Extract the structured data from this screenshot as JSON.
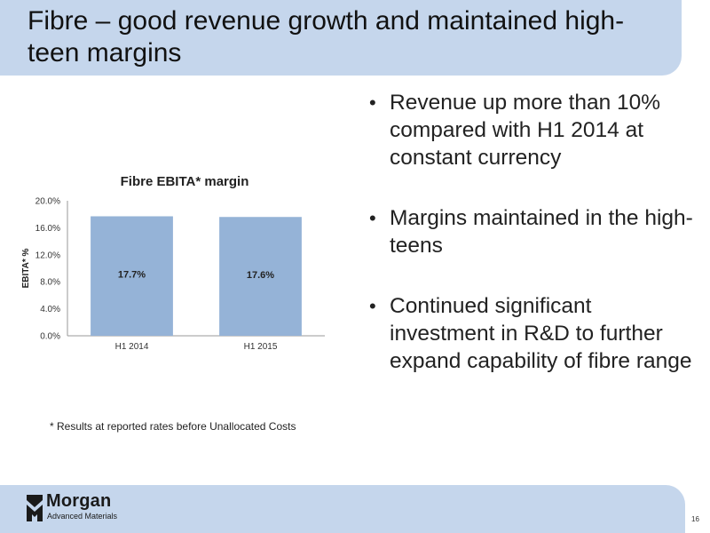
{
  "slide": {
    "title": "Fibre – good revenue growth and maintained high-teen margins",
    "bullets": [
      "Revenue up more than 10% compared with H1 2014 at constant currency",
      "Margins maintained in the high-teens",
      "Continued significant investment in R&D to further expand capability of fibre range"
    ],
    "footnote": "* Results at reported rates before Unallocated Costs",
    "page_number": "16",
    "bullet_symbol": "•"
  },
  "logo": {
    "name": "Morgan",
    "subtitle": "Advanced Materials"
  },
  "chart_data": {
    "type": "bar",
    "title": "Fibre EBITA* margin",
    "ylabel": "EBITA* %",
    "xlabel": "",
    "categories": [
      "H1 2014",
      "H1 2015"
    ],
    "values": [
      17.7,
      17.6
    ],
    "data_labels": [
      "17.7%",
      "17.6%"
    ],
    "ylim": [
      0,
      20
    ],
    "yticks": [
      "0.0%",
      "4.0%",
      "8.0%",
      "12.0%",
      "16.0%",
      "20.0%"
    ],
    "grid": false,
    "bar_color": "#95b3d7"
  }
}
